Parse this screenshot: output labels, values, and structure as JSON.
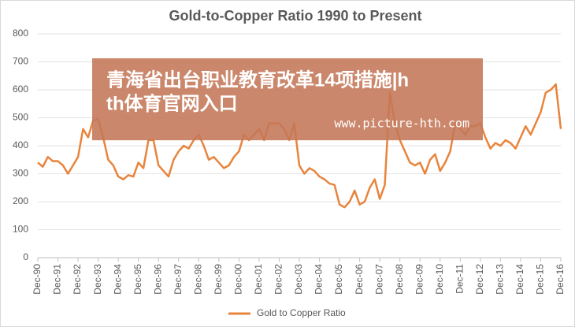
{
  "chart_data": {
    "type": "line",
    "title": "Gold-to-Copper  Ratio  1990 to Present",
    "categories": [
      "Dec-90",
      null,
      null,
      null,
      "Dec-91",
      null,
      null,
      null,
      "Dec-92",
      null,
      null,
      null,
      "Dec-93",
      null,
      null,
      null,
      "Dec-94",
      null,
      null,
      null,
      "Dec-95",
      null,
      null,
      null,
      "Dec-96",
      null,
      null,
      null,
      "Dec-97",
      null,
      null,
      null,
      "Dec-98",
      null,
      null,
      null,
      "Dec-99",
      null,
      null,
      null,
      "Dec-00",
      null,
      null,
      null,
      "Dec-01",
      null,
      null,
      null,
      "Dec-02",
      null,
      null,
      null,
      "Dec-03",
      null,
      null,
      null,
      "Dec-04",
      null,
      null,
      null,
      "Dec-05",
      null,
      null,
      null,
      "Dec-06",
      null,
      null,
      null,
      "Dec-07",
      null,
      null,
      null,
      "Dec-08",
      null,
      null,
      null,
      "Dec-09",
      null,
      null,
      null,
      "Dec-10",
      null,
      null,
      null,
      "Dec-11",
      null,
      null,
      null,
      "Dec-12",
      null,
      null,
      null,
      "Dec-13",
      null,
      null,
      null,
      "Dec-14",
      null,
      null,
      null,
      "Dec-15",
      null,
      null,
      null,
      "Dec-16"
    ],
    "series": [
      {
        "name": "Gold to Copper Ratio",
        "color": "#e8843c",
        "values": [
          340,
          325,
          360,
          345,
          345,
          330,
          300,
          330,
          360,
          460,
          430,
          490,
          495,
          430,
          350,
          330,
          290,
          280,
          295,
          290,
          340,
          320,
          420,
          420,
          330,
          310,
          290,
          350,
          380,
          400,
          390,
          420,
          440,
          400,
          350,
          360,
          340,
          320,
          330,
          360,
          380,
          440,
          420,
          440,
          460,
          420,
          480,
          480,
          480,
          460,
          420,
          480,
          330,
          300,
          320,
          310,
          290,
          280,
          265,
          260,
          190,
          180,
          200,
          240,
          190,
          200,
          250,
          280,
          210,
          260,
          590,
          480,
          420,
          380,
          340,
          330,
          340,
          300,
          350,
          370,
          310,
          340,
          380,
          480,
          460,
          440,
          470,
          470,
          480,
          430,
          390,
          410,
          400,
          420,
          410,
          390,
          430,
          470,
          440,
          480,
          520,
          590,
          600,
          620,
          460
        ]
      }
    ],
    "ylim": [
      0,
      800
    ],
    "yticks": [
      0,
      100,
      200,
      300,
      400,
      500,
      600,
      700,
      800
    ],
    "grid": true,
    "legend": "bottom",
    "annotations": {
      "headline": [
        "青海省出台职业教育改革14项措施|h",
        "th体育官网入口"
      ],
      "url": "www.picture-hth.com"
    }
  }
}
